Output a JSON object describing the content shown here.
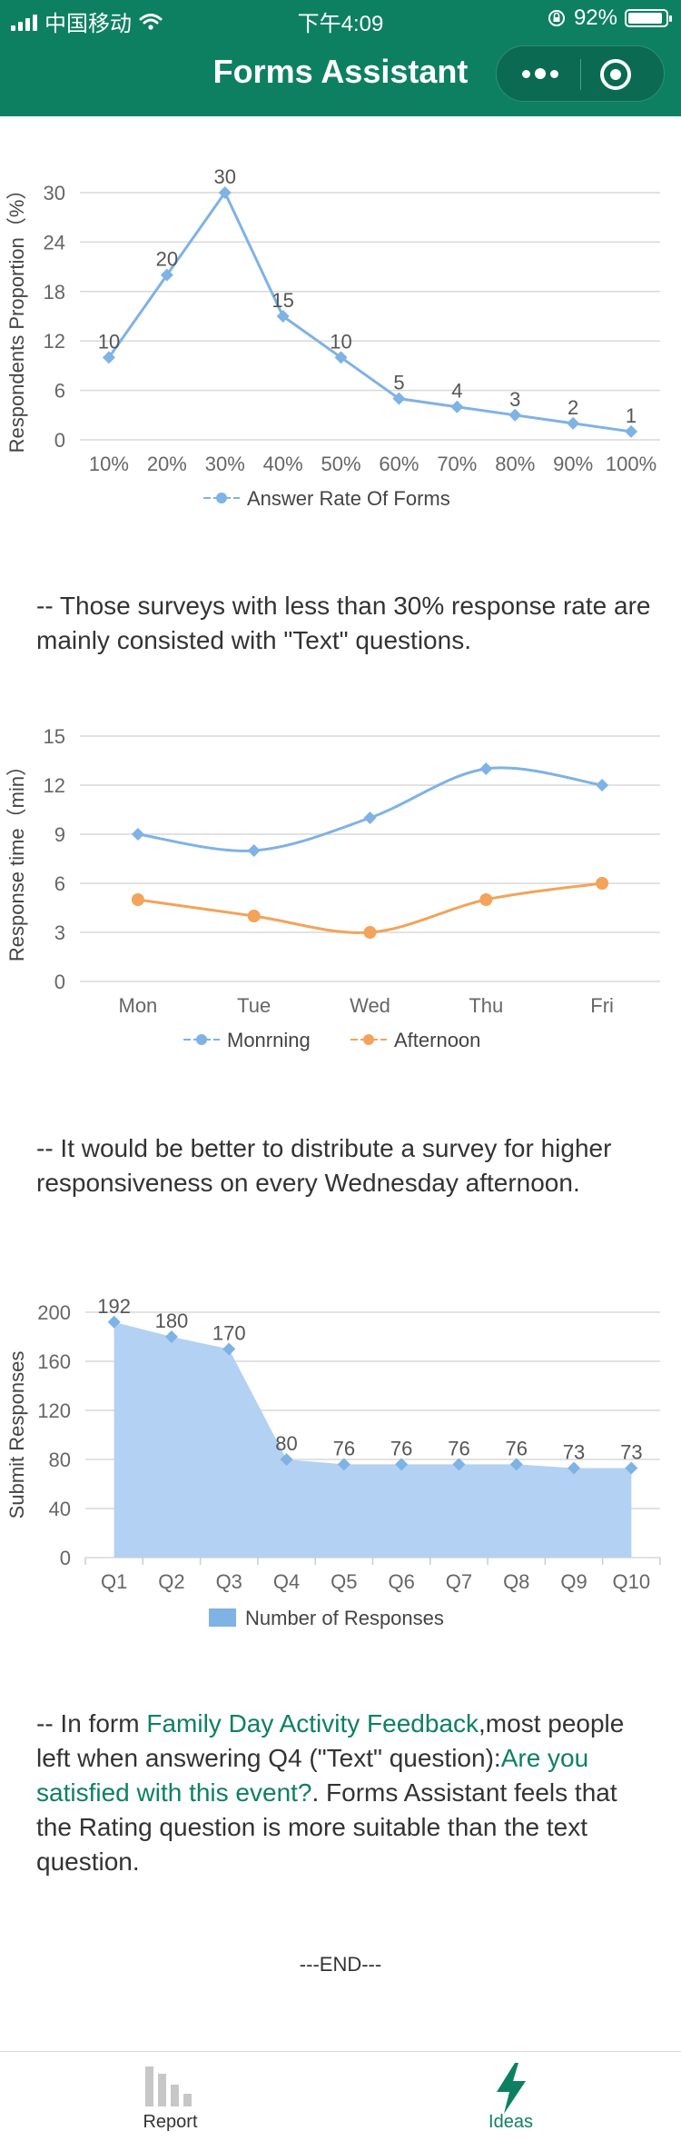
{
  "status_bar": {
    "carrier": "中国移动",
    "time": "下午4:09",
    "battery": "92%",
    "battery_level": 0.92
  },
  "nav": {
    "title": "Forms Assistant"
  },
  "colors": {
    "brand": "#0e8062",
    "series_blue": "#7fb2e5",
    "series_orange": "#f3a35a",
    "area_fill": "#b3d1f2"
  },
  "chart_data": [
    {
      "type": "line",
      "categories": [
        "10%",
        "20%",
        "30%",
        "40%",
        "50%",
        "60%",
        "70%",
        "80%",
        "90%",
        "100%"
      ],
      "series": [
        {
          "name": "Answer Rate Of Forms",
          "values": [
            10,
            20,
            30,
            15,
            10,
            5,
            4,
            3,
            2,
            1
          ]
        }
      ],
      "ylabel": "Respondents Proportion（%）",
      "yticks": [
        0,
        6,
        12,
        18,
        24,
        30
      ],
      "ylim": [
        0,
        30
      ],
      "grid": true,
      "legend": "bottom",
      "data_labels": true
    },
    {
      "type": "line",
      "categories": [
        "Mon",
        "Tue",
        "Wed",
        "Thu",
        "Fri"
      ],
      "series": [
        {
          "name": "Monrning",
          "values": [
            9,
            8,
            10,
            13,
            12
          ]
        },
        {
          "name": "Afternoon",
          "values": [
            5,
            4,
            3,
            5,
            6
          ]
        }
      ],
      "ylabel": "Response time（min）",
      "yticks": [
        0,
        3,
        6,
        9,
        12,
        15
      ],
      "ylim": [
        0,
        15
      ],
      "grid": true,
      "legend": "bottom",
      "smooth": true
    },
    {
      "type": "area",
      "categories": [
        "Q1",
        "Q2",
        "Q3",
        "Q4",
        "Q5",
        "Q6",
        "Q7",
        "Q8",
        "Q9",
        "Q10"
      ],
      "series": [
        {
          "name": "Number of Responses",
          "values": [
            192,
            180,
            170,
            80,
            76,
            76,
            76,
            76,
            73,
            73
          ]
        }
      ],
      "ylabel": "Submit Responses",
      "yticks": [
        0,
        40,
        80,
        120,
        160,
        200
      ],
      "ylim": [
        0,
        200
      ],
      "grid": true,
      "legend": "bottom",
      "data_labels": true
    }
  ],
  "insights": {
    "first": "-- Those surveys with less than 30% response rate are mainly consisted with \"Text\" questions.",
    "second": "-- It would be better to distribute a survey for higher responsiveness on every Wednesday afternoon.",
    "third_prefix": "-- In form ",
    "third_form_name": "Family Day Activity Feedback",
    "third_mid": ",most people left when answering Q4 (\"Text\" question):",
    "third_question": "Are you satisfied with this event?",
    "third_suffix": ". Forms Assistant feels that the Rating question is more suitable than the text question."
  },
  "end_text": "---END---",
  "tabbar": {
    "report_label": "Report",
    "ideas_label": "Ideas"
  }
}
